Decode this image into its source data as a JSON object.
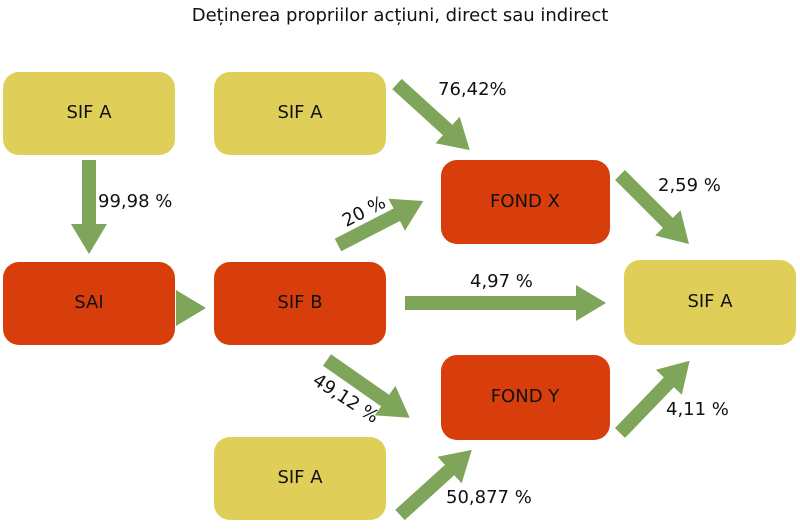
{
  "title": "Deținerea propriilor acțiuni, direct sau indirect",
  "nodes": [
    {
      "label": "SIF A"
    },
    {
      "label": "SIF A"
    },
    {
      "label": "SAI"
    },
    {
      "label": "SIF B"
    },
    {
      "label": "FOND X"
    },
    {
      "label": "FOND Y"
    },
    {
      "label": "SIF A"
    },
    {
      "label": "SIF A"
    }
  ],
  "edges": [
    {
      "label": "99,98 %"
    },
    {
      "label": "76,42%"
    },
    {
      "label": "20 %"
    },
    {
      "label": "2,59 %"
    },
    {
      "label": "4,97 %"
    },
    {
      "label": "49,12 %"
    },
    {
      "label": "50,877 %"
    },
    {
      "label": "4,11 %"
    }
  ]
}
